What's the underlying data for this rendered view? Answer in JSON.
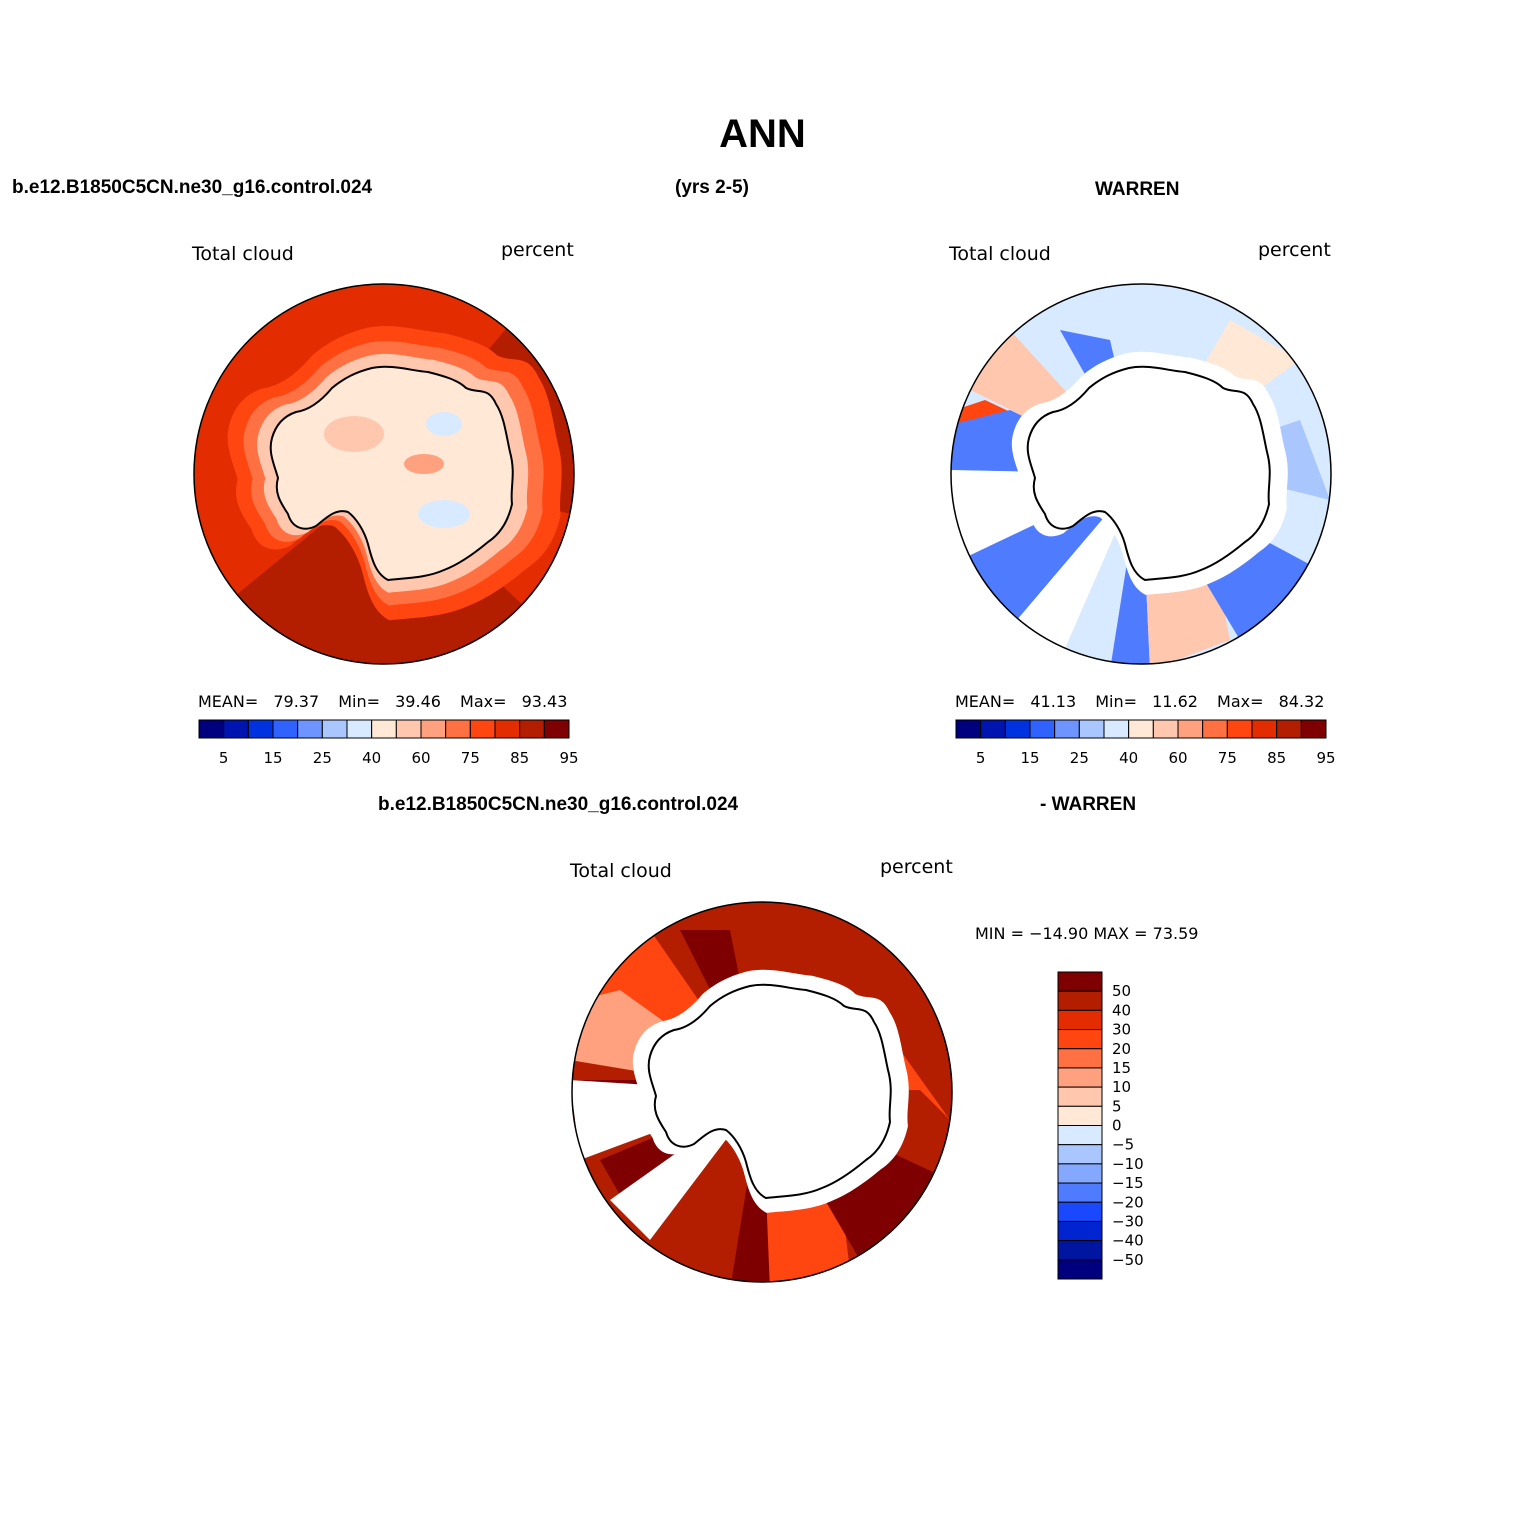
{
  "page": {
    "title": "ANN",
    "case_name": "b.e12.B1850C5CN.ne30_g16.control.024",
    "years": "(yrs 2-5)",
    "obs_name": "WARREN",
    "diff_case": "b.e12.B1850C5CN.ne30_g16.control.024",
    "diff_obs": "- WARREN"
  },
  "panels": [
    {
      "id": "model",
      "variable": "Total cloud",
      "units": "percent",
      "stats": {
        "mean_label": "MEAN=",
        "mean": "79.37",
        "min_label": "Min=",
        "min": "39.46",
        "max_label": "Max=",
        "max": "93.43"
      }
    },
    {
      "id": "obs",
      "variable": "Total cloud",
      "units": "percent",
      "stats": {
        "mean_label": "MEAN=",
        "mean": "41.13",
        "min_label": "Min=",
        "min": "11.62",
        "max_label": "Max=",
        "max": "84.32"
      }
    },
    {
      "id": "diff",
      "variable": "Total cloud",
      "units": "percent",
      "minmax": "MIN = −14.90 MAX =  73.59"
    }
  ],
  "colorbar_field": {
    "tick_labels": [
      "5",
      "15",
      "25",
      "40",
      "60",
      "75",
      "85",
      "95"
    ],
    "colors": [
      "#00007f",
      "#0015b0",
      "#0032e0",
      "#2f62ff",
      "#6e95ff",
      "#a9c6ff",
      "#d8eaff",
      "#ffe8d6",
      "#ffc8ae",
      "#ffa07e",
      "#ff7042",
      "#ff4510",
      "#e32d00",
      "#b31d00",
      "#7f0000"
    ]
  },
  "colorbar_diff": {
    "tick_labels": [
      "50",
      "40",
      "30",
      "20",
      "15",
      "10",
      "5",
      "0",
      "−5",
      "−10",
      "−15",
      "−20",
      "−30",
      "−40",
      "−50"
    ],
    "colors": [
      "#7f0000",
      "#b31d00",
      "#e32d00",
      "#ff4510",
      "#ff7042",
      "#ffa07e",
      "#ffc8ae",
      "#ffe8d6",
      "#d8eaff",
      "#a9c6ff",
      "#85a8ff",
      "#4f7bff",
      "#1a48ff",
      "#0025d0",
      "#0015a0",
      "#00007f"
    ]
  }
}
